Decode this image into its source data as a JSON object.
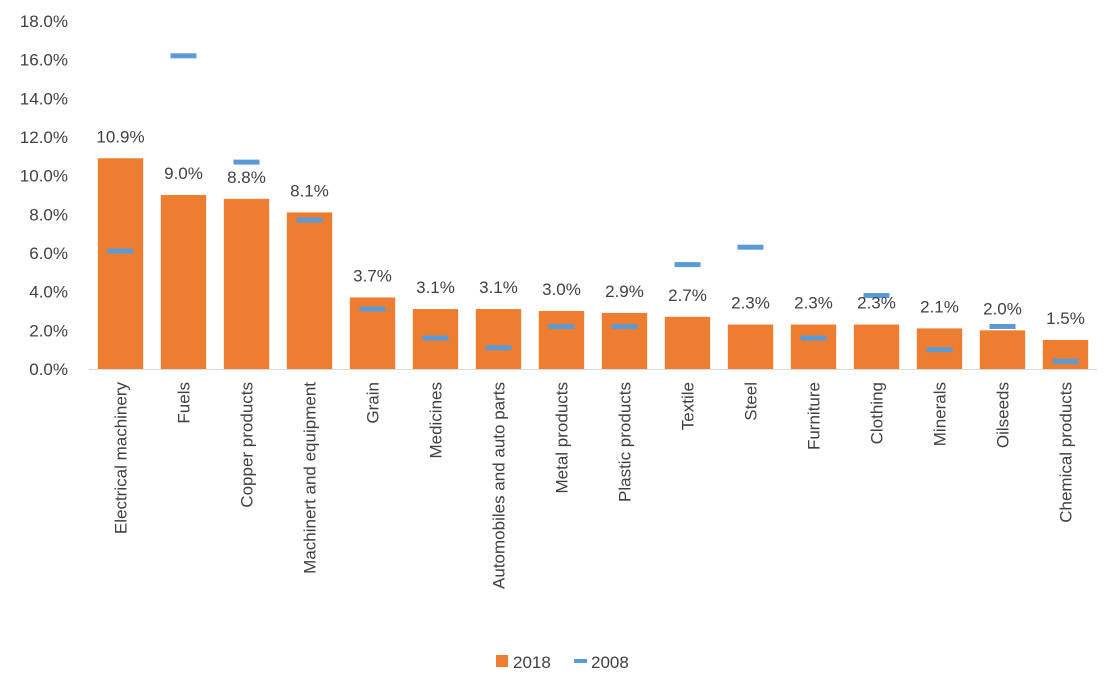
{
  "chart_data": {
    "type": "bar",
    "title": "",
    "xlabel": "",
    "ylabel": "",
    "ylim": [
      0,
      18
    ],
    "y_ticks": [
      "0.0%",
      "2.0%",
      "4.0%",
      "6.0%",
      "8.0%",
      "10.0%",
      "12.0%",
      "14.0%",
      "16.0%",
      "18.0%"
    ],
    "grid": false,
    "legend_position": "bottom",
    "categories": [
      "Electrical machinery",
      "Fuels",
      "Copper products",
      "Machinert and equipment",
      "Grain",
      "Medicines",
      "Automobiles and auto parts",
      "Metal products",
      "Plastic products",
      "Textile",
      "Steel",
      "Furniture",
      "Clothing",
      "Minerals",
      "Oilseeds",
      "Chemical products"
    ],
    "series": [
      {
        "name": "2018",
        "kind": "bar",
        "color": "#ED7D31",
        "values": [
          10.9,
          9.0,
          8.8,
          8.1,
          3.7,
          3.1,
          3.1,
          3.0,
          2.9,
          2.7,
          2.3,
          2.3,
          2.3,
          2.1,
          2.0,
          1.5
        ],
        "labels": [
          "10.9%",
          "9.0%",
          "8.8%",
          "8.1%",
          "3.7%",
          "3.1%",
          "3.1%",
          "3.0%",
          "2.9%",
          "2.7%",
          "2.3%",
          "2.3%",
          "2.3%",
          "2.1%",
          "2.0%",
          "1.5%"
        ]
      },
      {
        "name": "2008",
        "kind": "marker",
        "color": "#5B9BD5",
        "values": [
          6.1,
          16.2,
          10.7,
          7.7,
          3.1,
          1.6,
          1.1,
          2.2,
          2.2,
          5.4,
          6.3,
          1.6,
          3.8,
          1.0,
          2.2,
          0.4
        ]
      }
    ]
  }
}
